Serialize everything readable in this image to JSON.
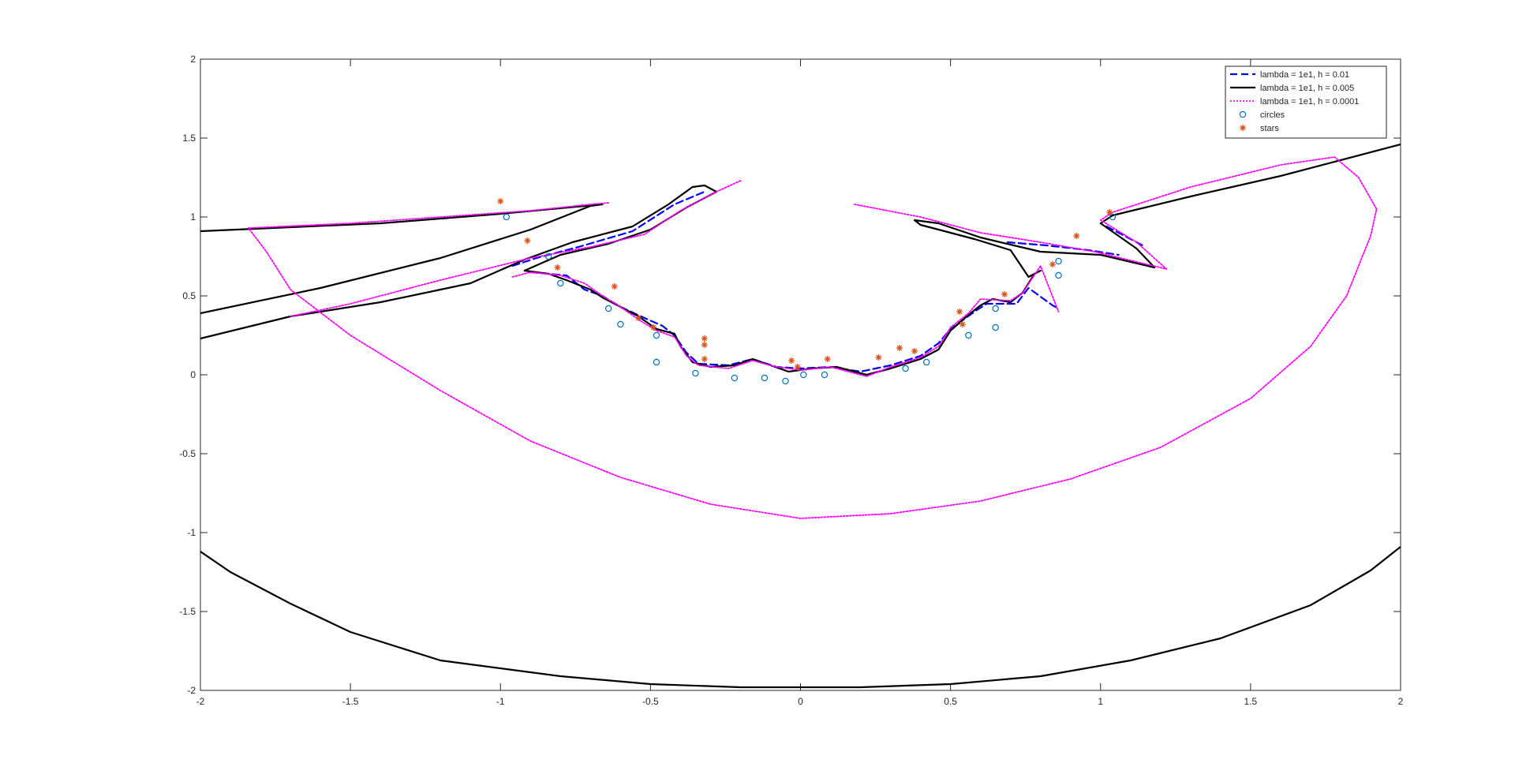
{
  "chart_data": {
    "type": "line",
    "xlim": [
      -2,
      2
    ],
    "ylim": [
      -2,
      2
    ],
    "grid": false,
    "legend_position": "top-right",
    "x_ticks": [
      "-2",
      "-1.5",
      "-1",
      "-0.5",
      "0",
      "0.5",
      "1",
      "1.5",
      "2"
    ],
    "y_ticks": [
      "2",
      "1.5",
      "1",
      "0.5",
      "0",
      "-0.5",
      "-1",
      "-1.5",
      "-2"
    ],
    "x_tick_values": [
      -2,
      -1.5,
      -1,
      -0.5,
      0,
      0.5,
      1,
      1.5,
      2
    ],
    "y_tick_values": [
      2,
      1.5,
      1,
      0.5,
      0,
      -0.5,
      -1,
      -1.5,
      -2
    ],
    "series": [
      {
        "name": "lambda = 1e1, h = 0.01",
        "style": "dashed",
        "color": "#0000ff",
        "segments": [
          [
            [
              -0.96,
              0.69
            ],
            [
              -0.88,
              0.74
            ],
            [
              -0.74,
              0.81
            ],
            [
              -0.56,
              0.91
            ],
            [
              -0.42,
              1.08
            ],
            [
              -0.32,
              1.16
            ]
          ],
          [
            [
              -0.9,
              0.65
            ],
            [
              -0.78,
              0.63
            ],
            [
              -0.72,
              0.54
            ],
            [
              -0.66,
              0.5
            ],
            [
              -0.6,
              0.43
            ],
            [
              -0.52,
              0.36
            ],
            [
              -0.46,
              0.31
            ],
            [
              -0.42,
              0.25
            ],
            [
              -0.38,
              0.14
            ],
            [
              -0.34,
              0.07
            ],
            [
              -0.24,
              0.06
            ],
            [
              -0.16,
              0.1
            ],
            [
              -0.08,
              0.05
            ],
            [
              0,
              0.04
            ],
            [
              0.1,
              0.05
            ],
            [
              0.2,
              0.02
            ],
            [
              0.3,
              0.06
            ],
            [
              0.4,
              0.12
            ],
            [
              0.46,
              0.2
            ],
            [
              0.5,
              0.29
            ],
            [
              0.58,
              0.4
            ],
            [
              0.62,
              0.45
            ],
            [
              0.72,
              0.45
            ],
            [
              0.76,
              0.55
            ],
            [
              0.84,
              0.44
            ],
            [
              0.86,
              0.42
            ]
          ],
          [
            [
              0.69,
              0.84
            ],
            [
              0.82,
              0.82
            ],
            [
              0.96,
              0.79
            ],
            [
              1.06,
              0.76
            ]
          ],
          [
            [
              1.02,
              0.94
            ],
            [
              1.08,
              0.88
            ],
            [
              1.14,
              0.82
            ]
          ]
        ]
      },
      {
        "name": "lambda = 1e1, h = 0.005",
        "style": "solid",
        "color": "#000000",
        "segments": [
          [
            [
              -2,
              0.23
            ],
            [
              -1.7,
              0.37
            ],
            [
              -1.4,
              0.46
            ],
            [
              -1.1,
              0.58
            ],
            [
              -0.92,
              0.73
            ],
            [
              -0.76,
              0.84
            ],
            [
              -0.56,
              0.94
            ],
            [
              -0.44,
              1.08
            ],
            [
              -0.36,
              1.19
            ],
            [
              -0.32,
              1.2
            ],
            [
              -0.28,
              1.16
            ],
            [
              -0.38,
              1.06
            ],
            [
              -0.5,
              0.92
            ],
            [
              -0.64,
              0.83
            ],
            [
              -0.8,
              0.76
            ],
            [
              -0.92,
              0.66
            ],
            [
              -0.84,
              0.64
            ],
            [
              -0.78,
              0.6
            ],
            [
              -0.7,
              0.54
            ],
            [
              -0.66,
              0.49
            ],
            [
              -0.6,
              0.43
            ],
            [
              -0.54,
              0.37
            ],
            [
              -0.48,
              0.29
            ],
            [
              -0.42,
              0.26
            ],
            [
              -0.4,
              0.18
            ],
            [
              -0.36,
              0.08
            ],
            [
              -0.3,
              0.05
            ],
            [
              -0.22,
              0.06
            ],
            [
              -0.16,
              0.1
            ],
            [
              -0.1,
              0.06
            ],
            [
              -0.04,
              0.02
            ],
            [
              0.04,
              0.04
            ],
            [
              0.12,
              0.05
            ],
            [
              0.22,
              0.0
            ],
            [
              0.3,
              0.04
            ],
            [
              0.4,
              0.1
            ],
            [
              0.46,
              0.16
            ],
            [
              0.5,
              0.28
            ],
            [
              0.56,
              0.38
            ],
            [
              0.6,
              0.44
            ],
            [
              0.64,
              0.48
            ],
            [
              0.7,
              0.46
            ],
            [
              0.74,
              0.52
            ],
            [
              0.78,
              0.64
            ],
            [
              0.8,
              0.66
            ],
            [
              0.76,
              0.62
            ],
            [
              0.7,
              0.79
            ],
            [
              0.58,
              0.86
            ],
            [
              0.4,
              0.95
            ],
            [
              0.38,
              0.98
            ],
            [
              0.46,
              0.96
            ],
            [
              0.6,
              0.87
            ],
            [
              0.8,
              0.78
            ],
            [
              1.0,
              0.76
            ],
            [
              1.18,
              0.68
            ],
            [
              1.12,
              0.8
            ],
            [
              1.0,
              0.96
            ],
            [
              1.04,
              1.01
            ],
            [
              1.3,
              1.13
            ],
            [
              1.6,
              1.26
            ],
            [
              2,
              1.46
            ]
          ],
          [
            [
              -2,
              0.39
            ],
            [
              -1.6,
              0.55
            ],
            [
              -1.2,
              0.74
            ],
            [
              -0.9,
              0.92
            ],
            [
              -0.7,
              1.07
            ],
            [
              -0.66,
              1.08
            ],
            [
              -1.0,
              1.02
            ],
            [
              -1.4,
              0.96
            ],
            [
              -2,
              0.91
            ]
          ],
          [
            [
              -2,
              -1.12
            ],
            [
              -1.9,
              -1.25
            ],
            [
              -1.7,
              -1.45
            ],
            [
              -1.5,
              -1.63
            ],
            [
              -1.2,
              -1.81
            ],
            [
              -0.8,
              -1.91
            ],
            [
              -0.5,
              -1.96
            ],
            [
              -0.2,
              -1.98
            ],
            [
              0.2,
              -1.98
            ],
            [
              0.5,
              -1.96
            ],
            [
              0.8,
              -1.91
            ],
            [
              1.1,
              -1.81
            ],
            [
              1.4,
              -1.67
            ],
            [
              1.7,
              -1.46
            ],
            [
              1.9,
              -1.24
            ],
            [
              2,
              -1.09
            ]
          ]
        ]
      },
      {
        "name": "lambda = 1e1, h = 0.0001",
        "style": "dotted",
        "color": "#ff00ff",
        "segments": [
          [
            [
              -0.96,
              0.62
            ],
            [
              -0.9,
              0.65
            ],
            [
              -0.8,
              0.63
            ],
            [
              -0.72,
              0.58
            ],
            [
              -0.66,
              0.5
            ],
            [
              -0.6,
              0.43
            ],
            [
              -0.54,
              0.35
            ],
            [
              -0.48,
              0.28
            ],
            [
              -0.42,
              0.24
            ],
            [
              -0.38,
              0.12
            ],
            [
              -0.34,
              0.06
            ],
            [
              -0.24,
              0.04
            ],
            [
              -0.16,
              0.09
            ],
            [
              -0.08,
              0.05
            ],
            [
              0,
              0.03
            ],
            [
              0.1,
              0.05
            ],
            [
              0.22,
              -0.01
            ],
            [
              0.3,
              0.05
            ],
            [
              0.4,
              0.11
            ],
            [
              0.46,
              0.18
            ],
            [
              0.5,
              0.3
            ],
            [
              0.56,
              0.39
            ],
            [
              0.6,
              0.48
            ],
            [
              0.7,
              0.47
            ],
            [
              0.74,
              0.52
            ],
            [
              0.8,
              0.69
            ],
            [
              0.86,
              0.4
            ]
          ],
          [
            [
              0.18,
              1.08
            ],
            [
              0.4,
              1.0
            ],
            [
              0.6,
              0.9
            ],
            [
              0.8,
              0.84
            ],
            [
              0.98,
              0.78
            ],
            [
              1.22,
              0.67
            ],
            [
              1.12,
              0.84
            ],
            [
              1.0,
              0.98
            ],
            [
              1.04,
              1.03
            ]
          ],
          [
            [
              -0.64,
              1.09
            ],
            [
              -0.7,
              1.08
            ],
            [
              -0.9,
              1.04
            ],
            [
              -1.2,
              1.0
            ],
            [
              -1.5,
              0.96
            ],
            [
              -1.84,
              0.93
            ],
            [
              -1.78,
              0.78
            ],
            [
              -1.7,
              0.54
            ],
            [
              -1.5,
              0.25
            ],
            [
              -1.2,
              -0.1
            ],
            [
              -0.9,
              -0.42
            ],
            [
              -0.6,
              -0.65
            ],
            [
              -0.3,
              -0.82
            ],
            [
              0,
              -0.91
            ],
            [
              0.3,
              -0.88
            ],
            [
              0.6,
              -0.8
            ],
            [
              0.9,
              -0.66
            ],
            [
              1.2,
              -0.46
            ],
            [
              1.5,
              -0.15
            ],
            [
              1.7,
              0.18
            ],
            [
              1.82,
              0.5
            ],
            [
              1.9,
              0.88
            ],
            [
              1.92,
              1.05
            ],
            [
              1.86,
              1.25
            ],
            [
              1.78,
              1.38
            ],
            [
              1.6,
              1.33
            ],
            [
              1.3,
              1.19
            ],
            [
              1.04,
              1.03
            ]
          ],
          [
            [
              -0.2,
              1.23
            ],
            [
              -0.28,
              1.16
            ],
            [
              -0.4,
              1.04
            ],
            [
              -0.52,
              0.89
            ],
            [
              -0.7,
              0.81
            ],
            [
              -0.9,
              0.74
            ],
            [
              -1.2,
              0.6
            ],
            [
              -1.5,
              0.45
            ],
            [
              -1.7,
              0.37
            ]
          ]
        ]
      },
      {
        "name": "circles",
        "marker": "o",
        "color": "#0072bd",
        "x": [
          -0.98,
          -0.84,
          -0.8,
          -0.64,
          -0.6,
          -0.48,
          -0.48,
          -0.35,
          -0.22,
          -0.12,
          -0.05,
          0.01,
          0.08,
          0.35,
          0.42,
          0.56,
          0.65,
          0.65,
          0.86,
          0.86,
          1.04
        ],
        "y": [
          1.0,
          0.75,
          0.58,
          0.42,
          0.32,
          0.25,
          0.08,
          0.01,
          -0.02,
          -0.02,
          -0.04,
          0.0,
          0.0,
          0.04,
          0.08,
          0.25,
          0.3,
          0.42,
          0.63,
          0.72,
          1.0
        ]
      },
      {
        "name": "stars",
        "marker": "*",
        "color": "#d95319",
        "x": [
          -1.0,
          -0.91,
          -0.81,
          -0.62,
          -0.54,
          -0.49,
          -0.32,
          -0.32,
          -0.32,
          -0.03,
          -0.01,
          0.09,
          0.26,
          0.33,
          0.38,
          0.53,
          0.54,
          0.68,
          0.84,
          0.92,
          1.03
        ],
        "y": [
          1.1,
          0.85,
          0.68,
          0.56,
          0.36,
          0.3,
          0.23,
          0.19,
          0.1,
          0.09,
          0.05,
          0.1,
          0.11,
          0.17,
          0.15,
          0.4,
          0.32,
          0.51,
          0.7,
          0.88,
          1.03
        ]
      }
    ]
  }
}
